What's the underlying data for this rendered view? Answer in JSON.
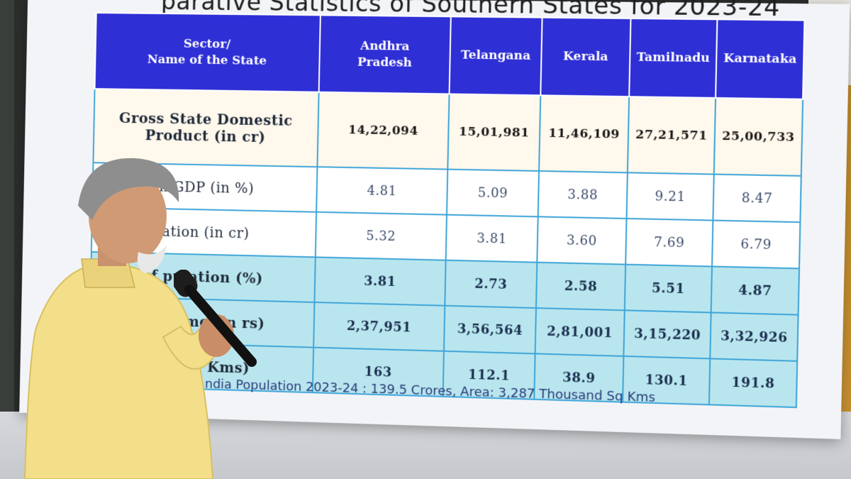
{
  "slide": {
    "title": "parative Statistics of Southern States for 2023-24",
    "footnote": "ndia Population 2023-24 : 139.5 Crores, Area: 3,287 Thousand Sq Kms"
  },
  "table": {
    "header": {
      "sector": "Sector/\nName of the State",
      "states": [
        "Andhra\nPradesh",
        "Telangana",
        "Kerala",
        "Tamilnadu",
        "Karnataka"
      ]
    },
    "rows": [
      {
        "label": "Gross State Domestic\nProduct (in cr)",
        "values": [
          "14,22,094",
          "15,01,981",
          "11,46,109",
          "27,21,571",
          "25,00,733"
        ],
        "style": "cream"
      },
      {
        "label": "in GDP (in %)",
        "values": [
          "4.81",
          "5.09",
          "3.88",
          "9.21",
          "8.47"
        ],
        "style": "white"
      },
      {
        "label": "lation (in cr)",
        "values": [
          "5.32",
          "3.81",
          "3.60",
          "7.69",
          "6.79"
        ],
        "style": "white"
      },
      {
        "label": "of pulation (%)",
        "values": [
          "3.81",
          "2.73",
          "2.58",
          "5.51",
          "4.87"
        ],
        "style": "teal"
      },
      {
        "label": "pita ome (in rs)",
        "values": [
          "2,37,951",
          "3,56,564",
          "2,81,001",
          "3,15,220",
          "3,32,926"
        ],
        "style": "teal"
      },
      {
        "label": "00 Sq. Kms)",
        "values": [
          "163",
          "112.1",
          "38.9",
          "130.1",
          "191.8"
        ],
        "style": "teal"
      }
    ]
  },
  "colors": {
    "header_blue": "#2f2fd6",
    "teal_row": "#b9e6ee",
    "cream_row": "#fff8ec",
    "kurta_yellow": "#f3df8a"
  }
}
